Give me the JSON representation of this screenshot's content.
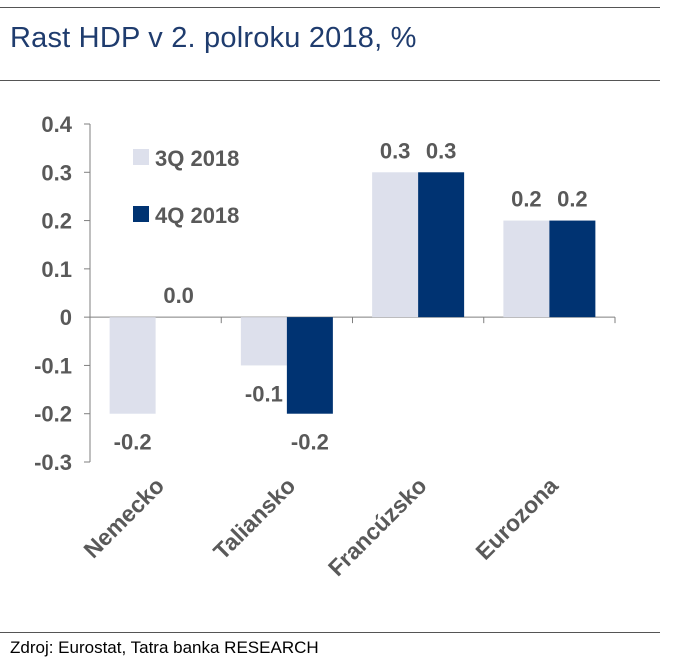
{
  "title": "Rast HDP v 2. polroku 2018, %",
  "source": "Zdroj: Eurostat, Tatra banka RESEARCH",
  "chart_data": {
    "type": "bar",
    "categories": [
      "Nemecko",
      "Taliansko",
      "Francúzsko",
      "Eurozona"
    ],
    "series": [
      {
        "name": "3Q 2018",
        "values": [
          -0.2,
          -0.1,
          0.3,
          0.2
        ],
        "labels": [
          "-0.2",
          "-0.1",
          "0.3",
          "0.2"
        ],
        "color": "#dde0ec"
      },
      {
        "name": "4Q 2018",
        "values": [
          0.0,
          -0.2,
          0.3,
          0.2
        ],
        "labels": [
          "0.0",
          "-0.2",
          "0.3",
          "0.2"
        ],
        "color": "#003372"
      }
    ],
    "ylim": [
      -0.3,
      0.4
    ],
    "yticks": [
      -0.3,
      -0.2,
      -0.1,
      0,
      0.1,
      0.2,
      0.3,
      0.4
    ],
    "ytick_labels": [
      "-0.3",
      "-0.2",
      "-0.1",
      "0",
      "0.1",
      "0.2",
      "0.3",
      "0.4"
    ],
    "legend_position": "top-left",
    "grid": false
  }
}
